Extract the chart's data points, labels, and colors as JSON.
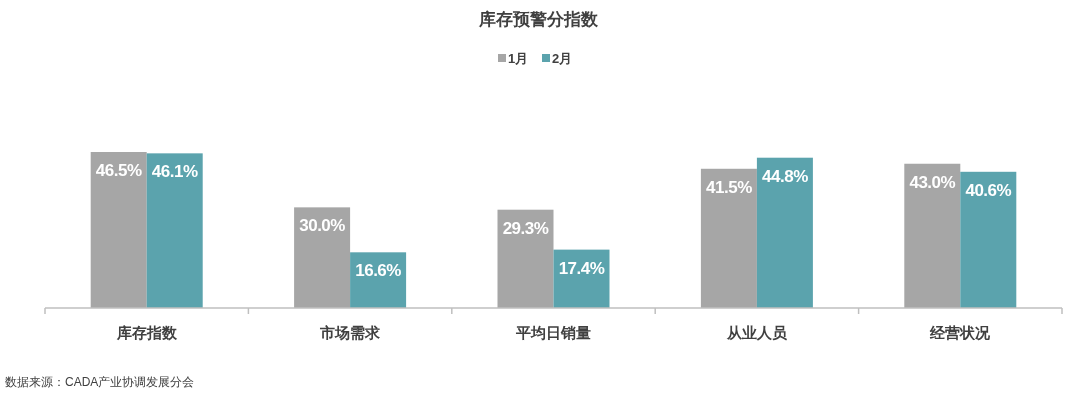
{
  "chart_data": {
    "type": "bar",
    "title": "库存预警分指数",
    "categories": [
      "库存指数",
      "市场需求",
      "平均日销量",
      "从业人员",
      "经营状况"
    ],
    "series": [
      {
        "name": "1月",
        "color": "#a6a6a6",
        "values": [
          46.5,
          30.0,
          29.3,
          41.5,
          43.0
        ],
        "value_labels": [
          "46.5%",
          "30.0%",
          "29.3%",
          "41.5%",
          "43.0%"
        ]
      },
      {
        "name": "2月",
        "color": "#5ba3ad",
        "values": [
          46.1,
          16.6,
          17.4,
          44.8,
          40.6
        ],
        "value_labels": [
          "46.1%",
          "16.6%",
          "17.4%",
          "44.8%",
          "40.6%"
        ]
      }
    ],
    "legend": "top",
    "annotations": [
      "数据来源：CADA产业协调发展分会"
    ]
  }
}
